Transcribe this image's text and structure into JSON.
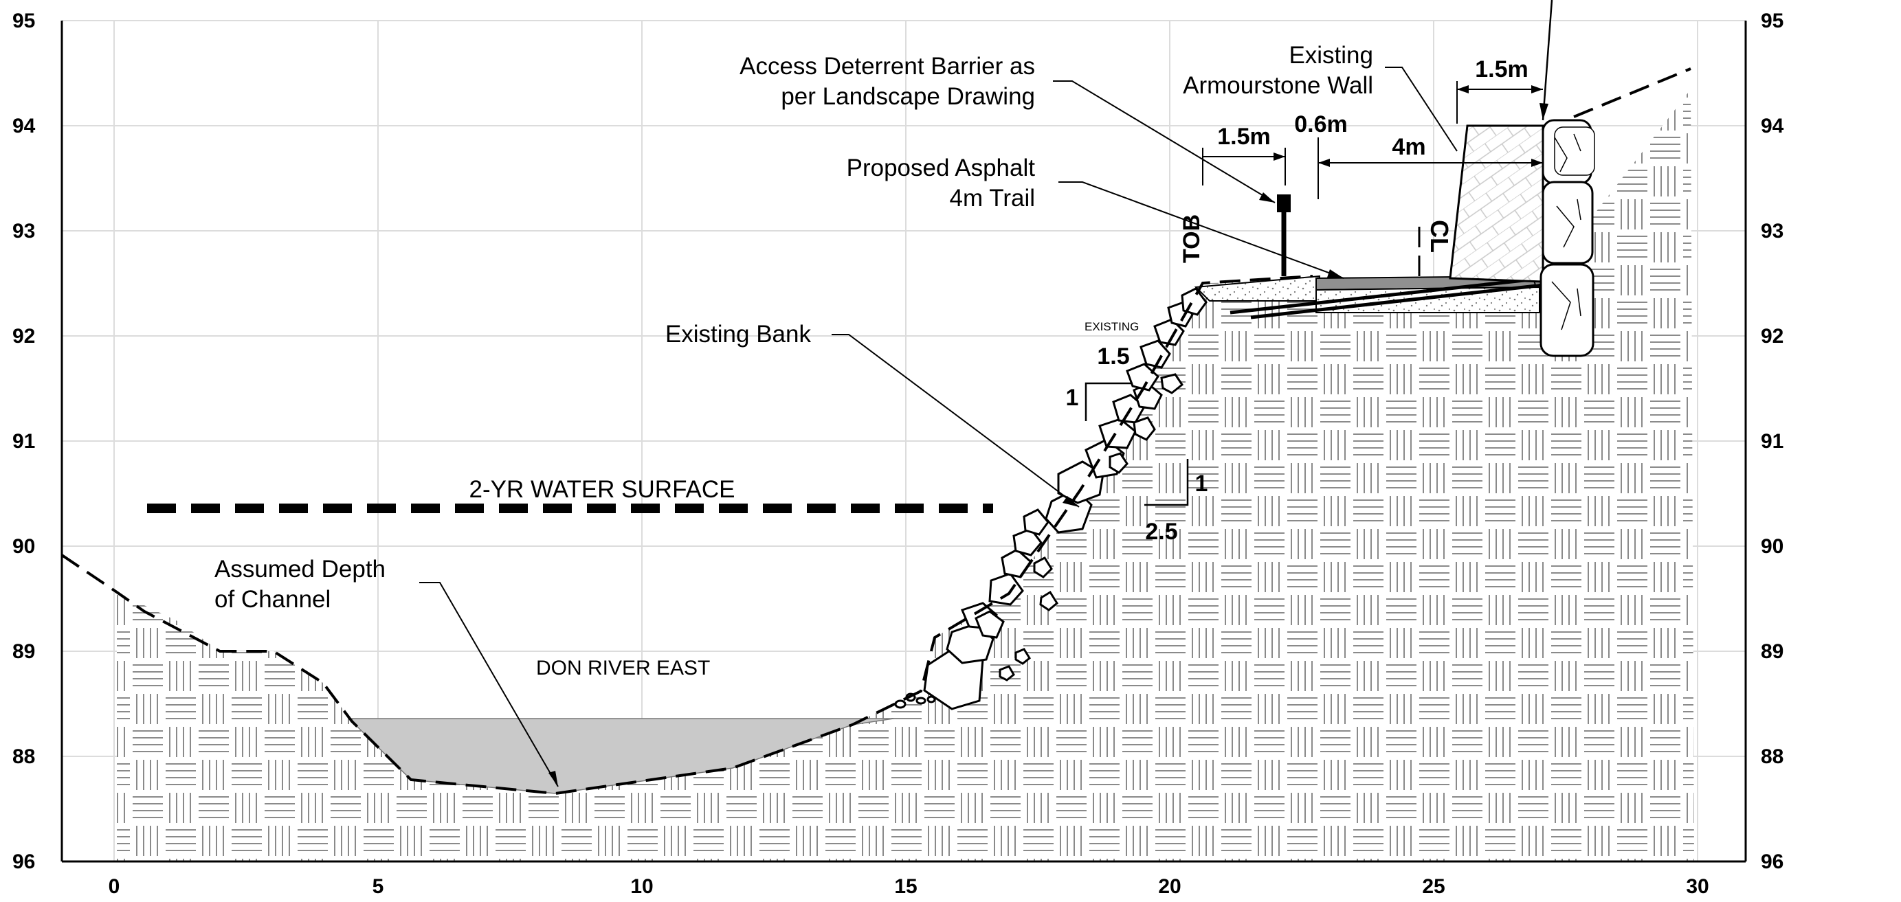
{
  "y_axis_ticks": [
    "95",
    "94",
    "93",
    "92",
    "91",
    "90",
    "89",
    "88",
    "96"
  ],
  "x_axis_ticks": [
    "0",
    "5",
    "10",
    "15",
    "20",
    "25",
    "30"
  ],
  "labels": {
    "access_barrier_line1": "Access Deterrent Barrier as",
    "access_barrier_line2": "per Landscape Drawing",
    "asphalt_line1": "Proposed Asphalt",
    "asphalt_line2": "4m Trail",
    "existing_wall_line1": "Existing",
    "existing_wall_line2": "Armourstone   Wall",
    "existing_bank": "Existing Bank",
    "water_surface": "2-YR WATER SURFACE",
    "depth_line1": "Assumed Depth",
    "depth_line2": "of Channel",
    "river": "DON RIVER EAST",
    "tob": "TOB",
    "centerline": "CL",
    "existing_slope": "EXISTING"
  },
  "dimensions": {
    "wall_top": "1.5m",
    "barrier_offset": "1.5m",
    "gap": "0.6m",
    "trail_width": "4m",
    "slope_upper_run": "1.5",
    "slope_upper_rise": "1",
    "slope_lower_rise": "1",
    "slope_lower_run": "2.5"
  },
  "colors": {
    "line": "#000000",
    "hatch": "#8a8a8a",
    "grid": "#dcdcdc",
    "water": "#c9c9c9",
    "asphalt": "#909090"
  }
}
